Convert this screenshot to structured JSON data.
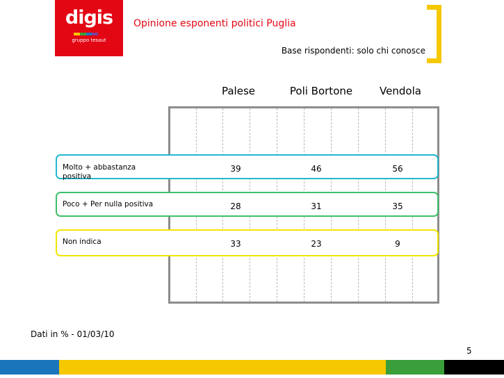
{
  "brand": {
    "name": "digis",
    "tagline": "gruppo tesaut",
    "logo_color": "#e30613",
    "stripe_colors": [
      "#f6c800",
      "#3a9e3a",
      "#1b75bb",
      "#7a3f98",
      "#e30613"
    ]
  },
  "header": {
    "title": "Opinione esponenti politici Puglia",
    "base": "Base rispondenti: solo chi conosce",
    "accent_color": "#f6c800"
  },
  "table": {
    "columns": [
      "Palese",
      "Poli Bortone",
      "Vendola"
    ],
    "rows": [
      {
        "label": "Molto + abbastanza positiva",
        "values": [
          "39",
          "46",
          "56"
        ],
        "border_color": "#22b8d0"
      },
      {
        "label": "Poco + Per nulla positiva",
        "values": [
          "28",
          "31",
          "35"
        ],
        "border_color": "#3cc06a"
      },
      {
        "label": "Non indica",
        "values": [
          "33",
          "23",
          "9"
        ],
        "border_color": "#f2e600"
      }
    ]
  },
  "footer": {
    "note": "Dati in % - 01/03/10",
    "page_number": "5",
    "bar_colors": [
      "#1b75bb",
      "#f6c800",
      "#3a9e3a",
      "#000000"
    ]
  }
}
